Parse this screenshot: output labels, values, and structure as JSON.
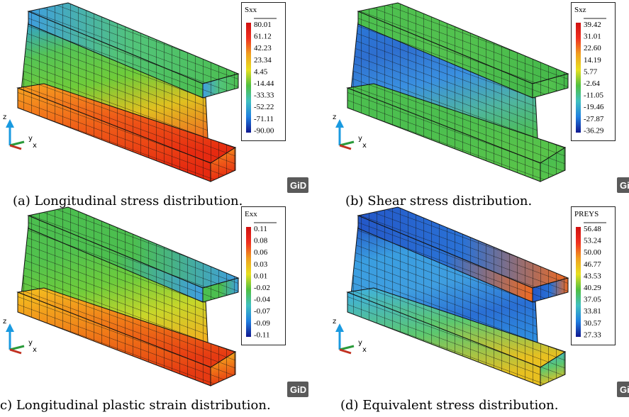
{
  "panels": [
    {
      "legend": {
        "title": "Sxx",
        "values": [
          "80.01",
          "61.12",
          "42.23",
          "23.34",
          "4.45",
          "-14.44",
          "-33.33",
          "-52.22",
          "-71.11",
          "-90.00"
        ]
      },
      "axis_labels": [
        "z",
        "y",
        "x"
      ],
      "logo": "GiD",
      "caption": "(a) Longitudinal stress distribution."
    },
    {
      "legend": {
        "title": "Sxz",
        "values": [
          "39.42",
          "31.01",
          "22.60",
          "14.19",
          "5.77",
          "-2.64",
          "-11.05",
          "-19.46",
          "-27.87",
          "-36.29"
        ]
      },
      "axis_labels": [
        "z",
        "y",
        "x"
      ],
      "logo": "Gi",
      "caption": "(b) Shear stress distribution."
    },
    {
      "legend": {
        "title": "Exx",
        "values": [
          "0.11",
          "0.08",
          "0.06",
          "0.03",
          "0.01",
          "-0.02",
          "-0.04",
          "-0.07",
          "-0.09",
          "-0.11"
        ]
      },
      "axis_labels": [
        "z",
        "y",
        "x"
      ],
      "logo": "GiD",
      "caption": "c) Longitudinal plastic strain distribution."
    },
    {
      "legend": {
        "title": "PREYS",
        "values": [
          "56.48",
          "53.24",
          "50.00",
          "46.77",
          "43.53",
          "40.29",
          "37.05",
          "33.81",
          "30.57",
          "27.33"
        ]
      },
      "axis_labels": [
        "z",
        "y",
        "x"
      ],
      "logo": "Gi",
      "caption": "(d) Equivalent stress distribution."
    }
  ]
}
